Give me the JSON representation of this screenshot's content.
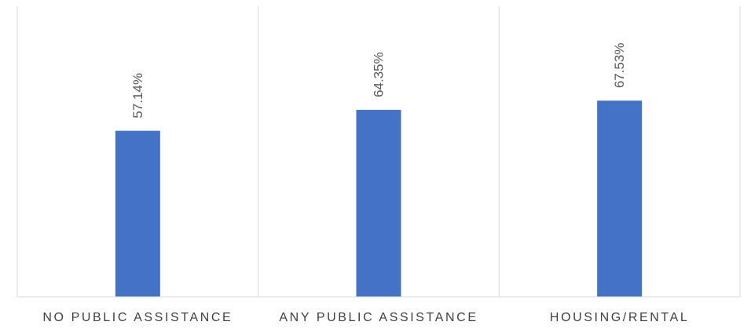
{
  "chart_data": {
    "type": "bar",
    "categories": [
      "NO PUBLIC ASSISTANCE",
      "ANY PUBLIC ASSISTANCE",
      "HOUSING/RENTAL"
    ],
    "values": [
      57.14,
      64.35,
      67.53
    ],
    "data_labels": [
      "57.14%",
      "64.35%",
      "67.53%"
    ],
    "ylim": [
      0,
      100
    ],
    "bar_color": "#4472C4",
    "grid": "vertical separators between categories",
    "legend": "none"
  }
}
